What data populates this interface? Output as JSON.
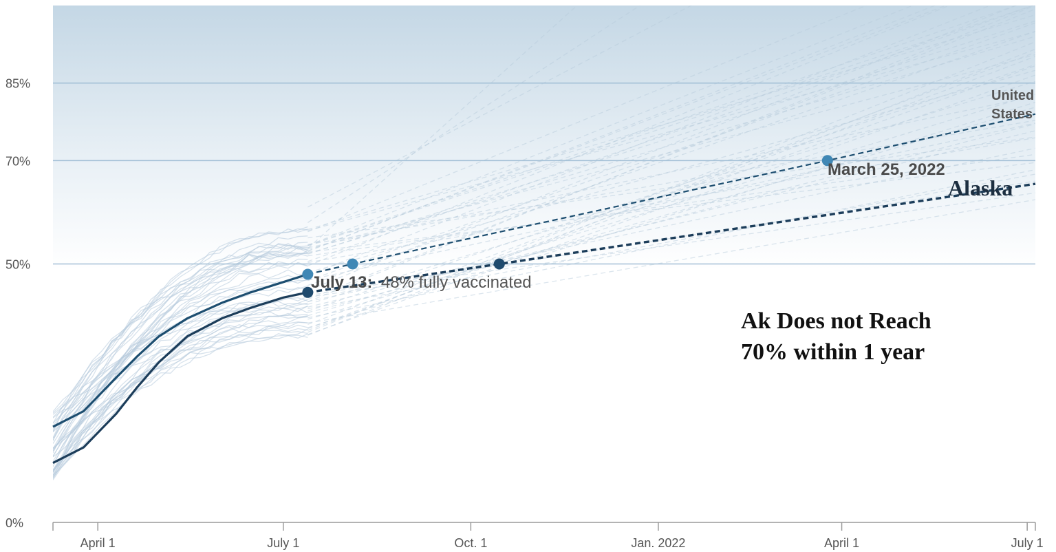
{
  "chart_data": {
    "type": "line",
    "title": "",
    "xlabel": "",
    "ylabel": "",
    "x_ticks": [
      "April 1",
      "July 1",
      "Oct. 1",
      "Jan. 2022",
      "April 1",
      "July 1"
    ],
    "y_ticks": [
      "85%",
      "70%",
      "50%",
      "0%"
    ],
    "ylim": [
      0,
      100
    ],
    "xlim": [
      "2021-03-10",
      "2022-07-05"
    ],
    "gridlines_at": [
      85,
      70,
      50
    ],
    "series": [
      {
        "name": "United States",
        "actual": [
          {
            "x": "2021-03-10",
            "y": 18.5
          },
          {
            "x": "2021-03-25",
            "y": 21.5
          },
          {
            "x": "2021-04-10",
            "y": 28
          },
          {
            "x": "2021-04-20",
            "y": 32
          },
          {
            "x": "2021-05-01",
            "y": 36
          },
          {
            "x": "2021-05-15",
            "y": 39.5
          },
          {
            "x": "2021-06-01",
            "y": 42.5
          },
          {
            "x": "2021-06-15",
            "y": 44.5
          },
          {
            "x": "2021-07-01",
            "y": 46.5
          },
          {
            "x": "2021-07-13",
            "y": 48
          }
        ],
        "projection": [
          {
            "x": "2021-07-13",
            "y": 48
          },
          {
            "x": "2021-08-04",
            "y": 50
          },
          {
            "x": "2022-03-25",
            "y": 70
          },
          {
            "x": "2022-07-05",
            "y": 79
          }
        ]
      },
      {
        "name": "Alaska",
        "actual": [
          {
            "x": "2021-03-10",
            "y": 11.5
          },
          {
            "x": "2021-03-25",
            "y": 14.5
          },
          {
            "x": "2021-04-10",
            "y": 21
          },
          {
            "x": "2021-04-20",
            "y": 26
          },
          {
            "x": "2021-05-01",
            "y": 31
          },
          {
            "x": "2021-05-15",
            "y": 36
          },
          {
            "x": "2021-06-01",
            "y": 39.5
          },
          {
            "x": "2021-06-15",
            "y": 41.5
          },
          {
            "x": "2021-07-01",
            "y": 43.5
          },
          {
            "x": "2021-07-13",
            "y": 44.5
          }
        ],
        "projection": [
          {
            "x": "2021-07-13",
            "y": 44.5
          },
          {
            "x": "2021-10-15",
            "y": 50
          },
          {
            "x": "2022-07-05",
            "y": 65.5
          }
        ]
      }
    ],
    "markers": [
      {
        "series": "United States",
        "x": "2021-07-13",
        "y": 48
      },
      {
        "series": "United States",
        "x": "2021-08-04",
        "y": 50
      },
      {
        "series": "United States",
        "x": "2022-03-25",
        "y": 70
      },
      {
        "series": "Alaska",
        "x": "2021-07-13",
        "y": 44.5
      },
      {
        "series": "Alaska",
        "x": "2021-10-15",
        "y": 50
      }
    ],
    "annotations": {
      "july13_bold": "July 13:",
      "july13_rest": "48% fully vaccinated",
      "march25": "March 25, 2022",
      "us_label_line1": "United",
      "us_label_line2": "States",
      "alaska_label": "Alaska",
      "note_line1": "Ak Does not Reach",
      "note_line2": "70% within 1 year"
    },
    "colors": {
      "us": "#1d4e70",
      "alaska": "#1c3d5a",
      "us_marker": "#3f87b5",
      "alaska_marker": "#1f4a6d",
      "background_state_lines": "#b7cbdc",
      "gridline": "#a3c0d6",
      "band_top": "#c4d7e5",
      "band_bottom": "#ffffff"
    }
  }
}
